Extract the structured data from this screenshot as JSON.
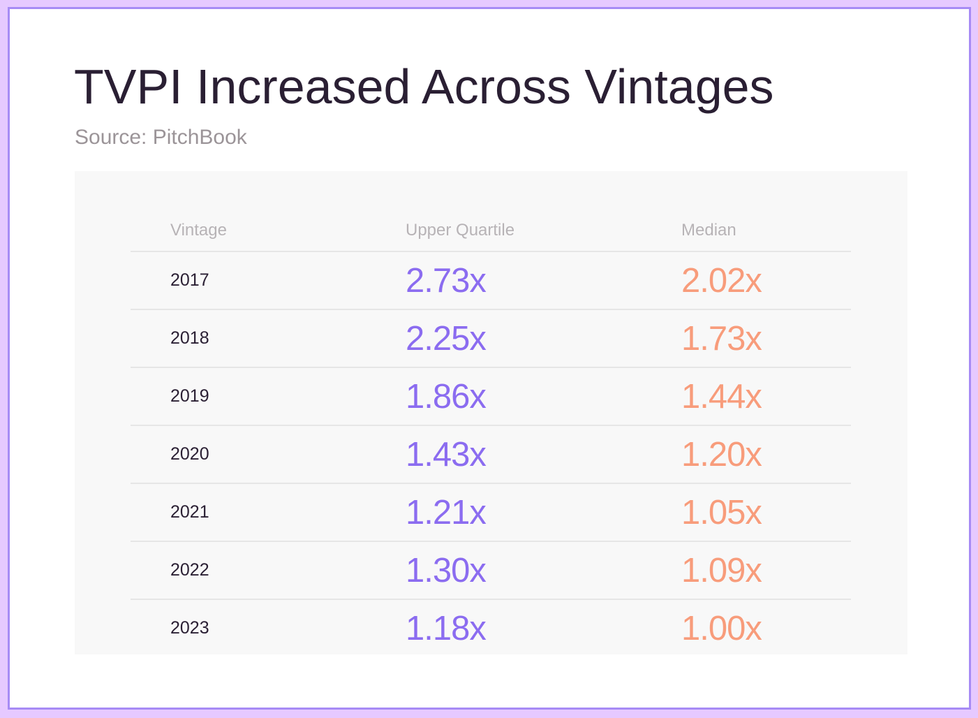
{
  "header": {
    "title": "TVPI Increased Across Vintages",
    "source": "Source: PitchBook"
  },
  "colors": {
    "upper_quartile": "#8b6cf0",
    "median": "#f89c7b",
    "frame": "#a78bf5",
    "background": "#e6c9ff"
  },
  "chart_data": {
    "type": "table",
    "title": "TVPI Increased Across Vintages",
    "subtitle": "Source: PitchBook",
    "columns": [
      "Vintage",
      "Upper Quartile",
      "Median"
    ],
    "rows": [
      {
        "vintage": "2017",
        "upper_quartile": "2.73x",
        "median": "2.02x"
      },
      {
        "vintage": "2018",
        "upper_quartile": "2.25x",
        "median": "1.73x"
      },
      {
        "vintage": "2019",
        "upper_quartile": "1.86x",
        "median": "1.44x"
      },
      {
        "vintage": "2020",
        "upper_quartile": "1.43x",
        "median": "1.20x"
      },
      {
        "vintage": "2021",
        "upper_quartile": "1.21x",
        "median": "1.05x"
      },
      {
        "vintage": "2022",
        "upper_quartile": "1.30x",
        "median": "1.09x"
      },
      {
        "vintage": "2023",
        "upper_quartile": "1.18x",
        "median": "1.00x"
      }
    ]
  }
}
